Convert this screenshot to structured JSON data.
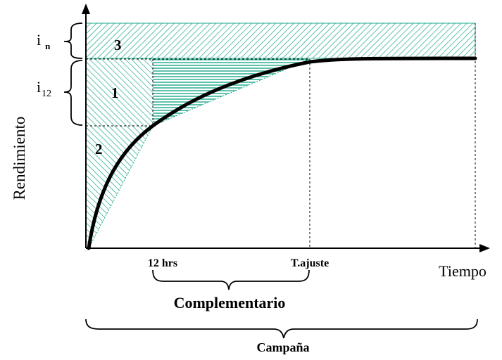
{
  "axes": {
    "y_label": "Rendimiento",
    "x_label": "Tiempo",
    "x_ticks": [
      "12 hrs",
      "T.ajuste"
    ]
  },
  "brackets": {
    "in_main": "i",
    "in_sub": "n",
    "i12_main": "i",
    "i12_sub": "12",
    "complementario": "Complementario",
    "campana": "Campaña"
  },
  "regions": {
    "region_1": "1",
    "region_2": "2",
    "region_3": "3"
  },
  "colors": {
    "hatch": "#1aa88a",
    "curve": "#000000",
    "axis": "#000000"
  }
}
